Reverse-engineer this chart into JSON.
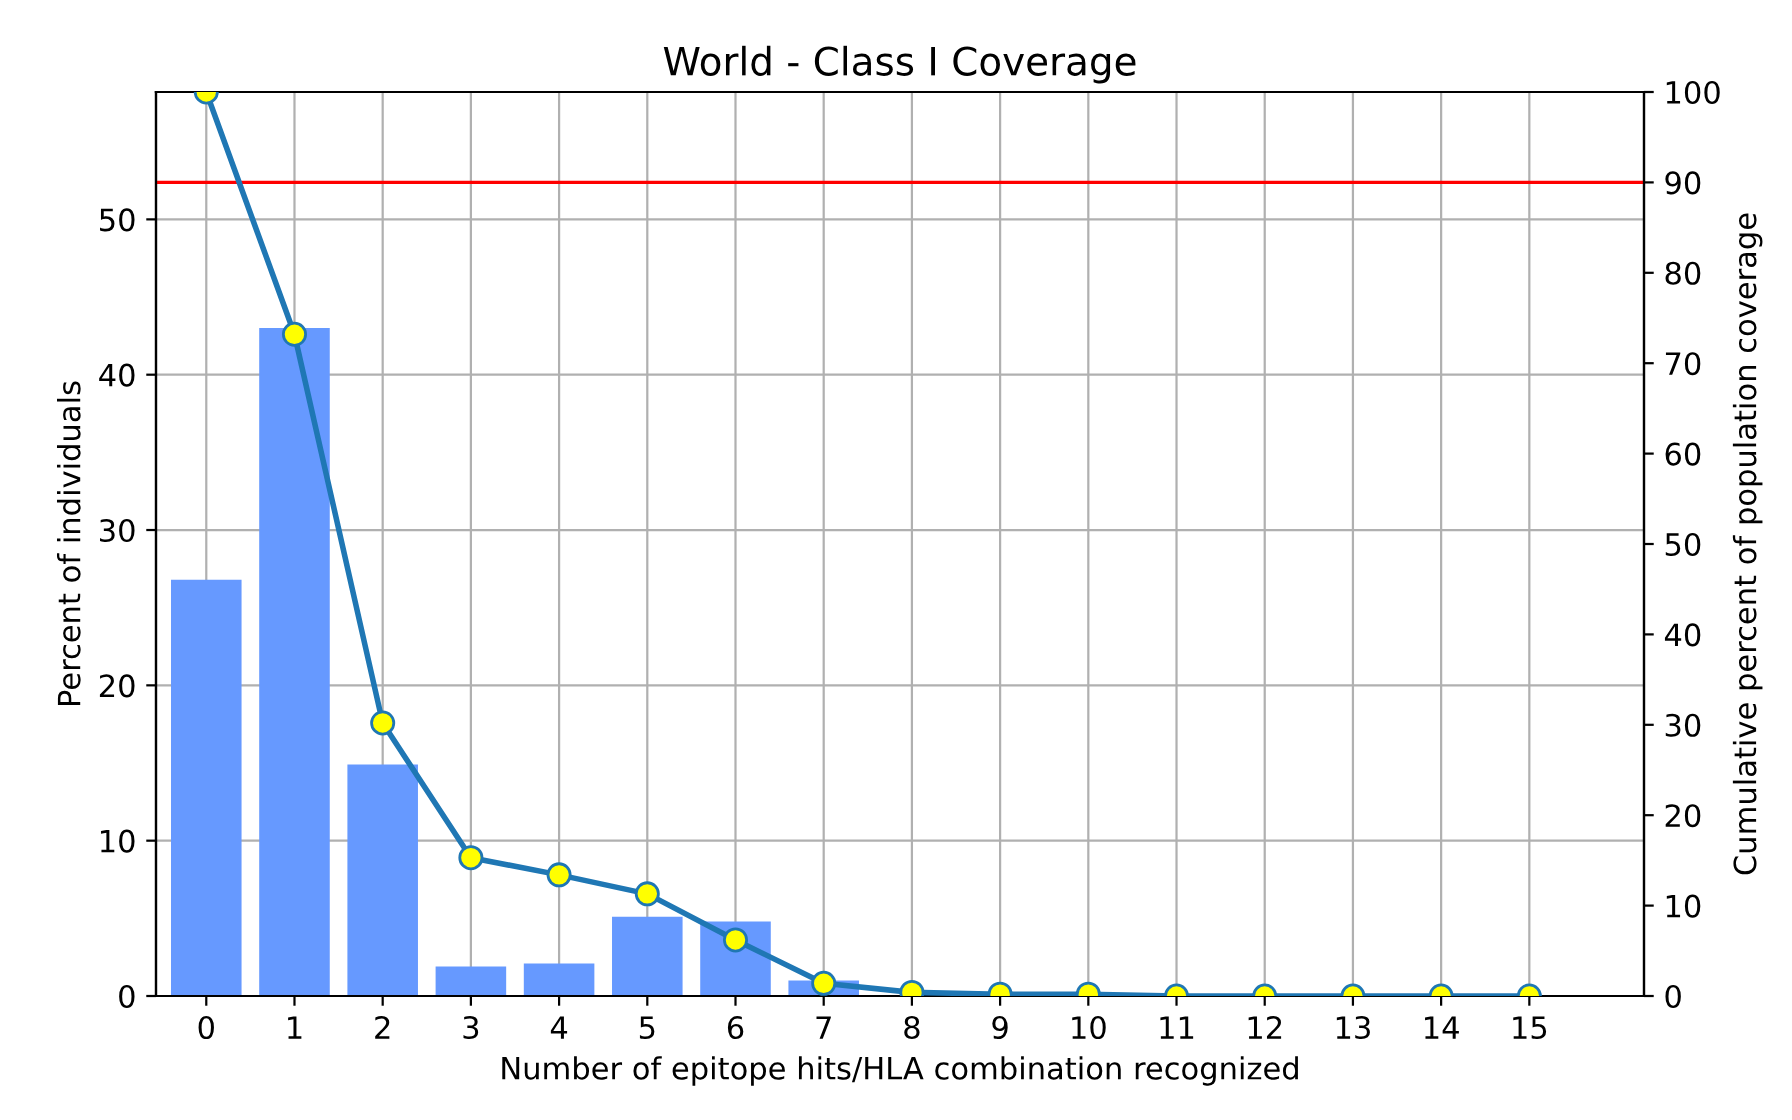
{
  "chart_data": {
    "type": "bar",
    "title": "World - Class I Coverage",
    "xlabel": "Number of epitope hits/HLA combination recognized",
    "ylabel": "Percent of individuals",
    "y2label": "Cumulative percent of population coverage",
    "categories": [
      "0",
      "1",
      "2",
      "3",
      "4",
      "5",
      "6",
      "7",
      "8",
      "9",
      "10",
      "11",
      "12",
      "13",
      "14",
      "15"
    ],
    "series": [
      {
        "color": "#6699ff",
        "values": [
          26.8,
          43.0,
          14.9,
          1.9,
          2.1,
          5.1,
          4.8,
          1.0,
          null,
          null,
          null,
          0,
          0,
          0,
          0,
          0
        ]
      },
      {
        "type": "line",
        "axis": "y2",
        "color": "#1f77b4",
        "marker": "circle",
        "values": [
          100,
          73.2,
          30.2,
          15.3,
          13.4,
          11.3,
          6.2,
          1.4,
          0.4,
          0.2,
          0.2,
          0,
          0,
          0,
          0,
          0
        ]
      }
    ],
    "ylim": [
      0,
      58.2
    ],
    "yticks": [
      0,
      10,
      20,
      30,
      40,
      50
    ],
    "y2lim": [
      0,
      100
    ],
    "y2ticks": [
      0,
      10,
      20,
      30,
      40,
      50,
      60,
      70,
      80,
      90,
      100
    ],
    "ref_lines": [
      {
        "axis": "y2",
        "value": 90,
        "color": "#ff0000"
      }
    ],
    "grid": true
  }
}
